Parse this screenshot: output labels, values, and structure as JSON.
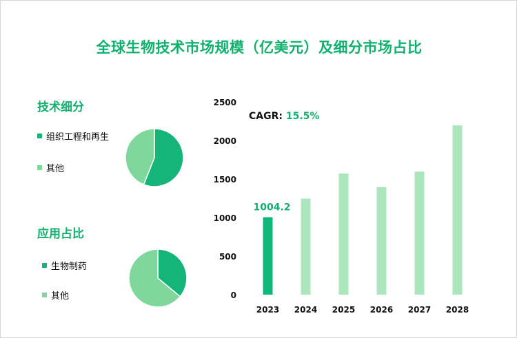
{
  "title": "全球生物技术市场规模（亿美元）及细分市场占比",
  "tech": {
    "heading": "技术细分",
    "legend": [
      {
        "label": "组织工程和再生",
        "color": "#15b57a"
      },
      {
        "label": "其他",
        "color": "#7fd79b"
      }
    ],
    "slices": [
      0.56,
      0.44
    ]
  },
  "app": {
    "heading": "应用占比",
    "legend": [
      {
        "label": "生物制药",
        "color": "#15b57a"
      },
      {
        "label": "其他",
        "color": "#7fd79b"
      }
    ],
    "slices": [
      0.36,
      0.64
    ]
  },
  "cagr": {
    "label": "CAGR:",
    "value": "15.5%"
  },
  "chart_data": {
    "type": "bar",
    "categories": [
      "2023",
      "2024",
      "2025",
      "2026",
      "2027",
      "2028"
    ],
    "values": [
      1004.2,
      1245,
      1570,
      1395,
      1595,
      2195
    ],
    "data_labels": [
      "1004.2",
      "",
      "",
      "",
      "",
      ""
    ],
    "highlight_index": 0,
    "highlight_color": "#10b77b",
    "bar_color": "#abe6bd",
    "ylim": [
      0,
      2500
    ],
    "yticks": [
      0,
      500,
      1000,
      1500,
      2000,
      2500
    ],
    "grid": false
  }
}
